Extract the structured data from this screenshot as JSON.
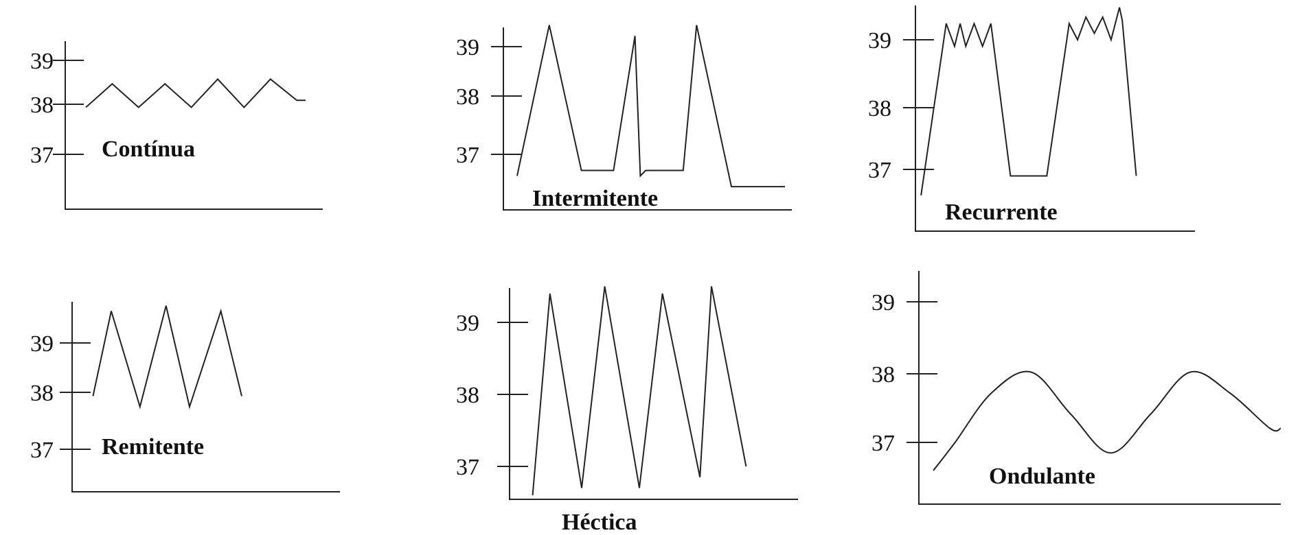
{
  "colors": {
    "ink": "#222222",
    "background": "#ffffff"
  },
  "chart_data": [
    {
      "type": "line",
      "title": "Contínua",
      "yticks": [
        37,
        38,
        39
      ],
      "xlim": [
        0,
        100
      ],
      "ylim": [
        35.2,
        39.6
      ],
      "x": [
        0,
        12,
        24,
        36,
        48,
        60,
        72,
        84,
        96,
        100
      ],
      "values": [
        38.0,
        38.5,
        38.0,
        38.5,
        38.0,
        38.6,
        38.0,
        38.6,
        38.15,
        38.15
      ],
      "smooth": false
    },
    {
      "type": "line",
      "title": "Intermitente",
      "yticks": [
        37,
        38,
        39
      ],
      "xlim": [
        0,
        100
      ],
      "ylim": [
        35.8,
        39.8
      ],
      "x": [
        0,
        12,
        24,
        36,
        44,
        46,
        48,
        62,
        67,
        80,
        100
      ],
      "values": [
        36.6,
        39.4,
        36.7,
        36.7,
        39.2,
        36.6,
        36.7,
        36.7,
        39.4,
        36.4,
        36.4
      ],
      "smooth": false
    },
    {
      "type": "line",
      "title": "Recurrente",
      "yticks": [
        37,
        38,
        39
      ],
      "xlim": [
        0,
        100
      ],
      "ylim": [
        35.9,
        39.55
      ],
      "x": [
        2,
        11,
        14,
        16,
        18,
        21,
        24,
        27,
        34,
        47,
        55,
        58,
        61,
        64,
        67,
        70,
        73,
        74,
        79
      ],
      "values": [
        36.6,
        39.25,
        38.9,
        39.25,
        38.9,
        39.25,
        38.9,
        39.25,
        36.9,
        36.9,
        39.25,
        39.0,
        39.35,
        39.1,
        39.35,
        39.0,
        39.5,
        39.3,
        36.9
      ],
      "smooth": false
    },
    {
      "type": "line",
      "title": "Remitente",
      "yticks": [
        37,
        38,
        39
      ],
      "xlim": [
        0,
        100
      ],
      "ylim": [
        35.3,
        40.1
      ],
      "x": [
        8,
        15,
        26,
        36,
        45,
        57,
        65
      ],
      "values": [
        38.0,
        39.6,
        37.8,
        39.7,
        37.8,
        39.6,
        38.0
      ],
      "smooth": false
    },
    {
      "type": "line",
      "title": "Héctica",
      "yticks": [
        37,
        38,
        39
      ],
      "xlim": [
        0,
        100
      ],
      "ylim": [
        35.9,
        39.6
      ],
      "x": [
        8,
        14,
        25,
        33,
        45,
        53,
        66,
        70,
        82
      ],
      "values": [
        36.6,
        39.4,
        36.7,
        39.5,
        36.7,
        39.4,
        36.85,
        39.5,
        37.0
      ],
      "smooth": false
    },
    {
      "type": "line",
      "title": "Ondulante",
      "yticks": [
        37,
        38,
        39
      ],
      "xlim": [
        0,
        100
      ],
      "ylim": [
        35.9,
        39.6
      ],
      "x": [
        4,
        10,
        20,
        31,
        42,
        53,
        64,
        75,
        86,
        97,
        100
      ],
      "values": [
        36.6,
        37.0,
        37.7,
        38.0,
        37.4,
        36.85,
        37.4,
        38.0,
        37.7,
        37.2,
        37.2
      ],
      "smooth": true
    }
  ]
}
